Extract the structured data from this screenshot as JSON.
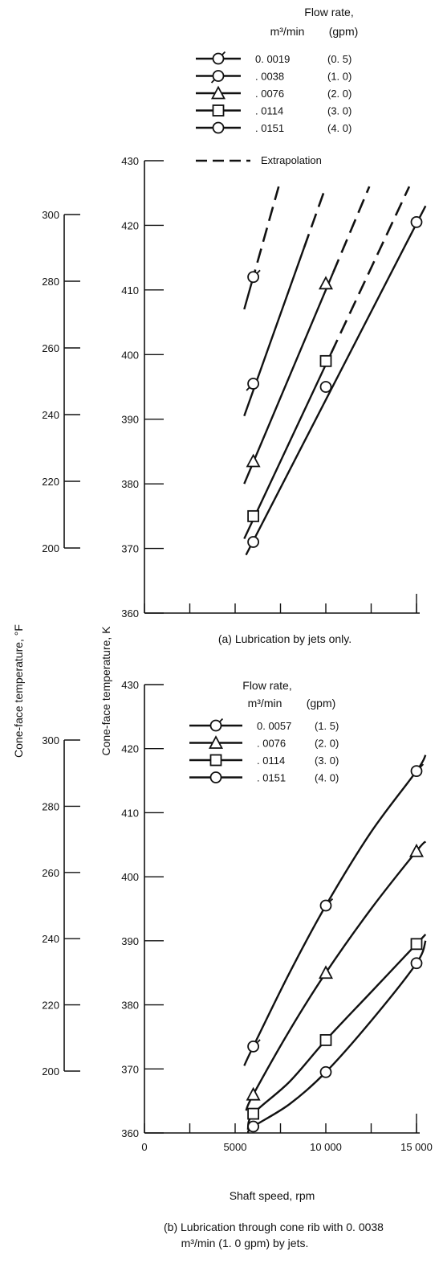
{
  "figure": {
    "left_axis_label": "Cone-face temperature, °F",
    "right_axis_label": "Cone-face temperature, K",
    "x_axis_label": "Shaft speed, rpm",
    "x_tick_labels": [
      "0",
      "5000",
      "10 000",
      "15 000"
    ]
  },
  "panel_a": {
    "caption": "(a) Lubrication by jets only.",
    "legend": {
      "title": "Flow rate,",
      "unit_si": "m³/min",
      "unit_us": "(gpm)",
      "extrapolation_label": "Extrapolation",
      "rows": [
        {
          "marker": "circle-flag-icon",
          "si": "0. 0019",
          "us": "(0. 5)"
        },
        {
          "marker": "circle-flag-down-icon",
          "si": ". 0038",
          "us": "(1. 0)"
        },
        {
          "marker": "triangle-icon",
          "si": ". 0076",
          "us": "(2. 0)"
        },
        {
          "marker": "square-icon",
          "si": ". 0114",
          "us": "(3. 0)"
        },
        {
          "marker": "circle-icon",
          "si": ". 0151",
          "us": "(4. 0)"
        }
      ]
    }
  },
  "panel_b": {
    "caption_line1": "(b) Lubrication through cone rib with 0. 0038",
    "caption_line2": "m³/min (1. 0 gpm) by jets.",
    "legend": {
      "title": "Flow rate,",
      "unit_si": "m³/min",
      "unit_us": "(gpm)",
      "rows": [
        {
          "marker": "circle-flag-icon",
          "si": "0. 0057",
          "us": "(1. 5)"
        },
        {
          "marker": "triangle-icon",
          "si": ". 0076",
          "us": "(2. 0)"
        },
        {
          "marker": "square-icon",
          "si": ". 0114",
          "us": "(3. 0)"
        },
        {
          "marker": "circle-icon",
          "si": ". 0151",
          "us": "(4. 0)"
        }
      ]
    }
  },
  "chart_data": [
    {
      "type": "line",
      "title": "(a) Lubrication by jets only.",
      "xlabel": "Shaft speed, rpm",
      "ylabel": "Cone-face temperature, K",
      "ylabel_secondary": "Cone-face temperature, °F",
      "xlim": [
        0,
        15000
      ],
      "ylim": [
        360,
        430
      ],
      "yticks": [
        360,
        370,
        380,
        390,
        400,
        410,
        420,
        430
      ],
      "yticks_secondary": [
        200,
        220,
        240,
        260,
        280,
        300
      ],
      "legend_position": "top",
      "series": [
        {
          "name": "0. 0019 (0. 5)",
          "marker": "circle-flag",
          "x": [
            6000
          ],
          "y": [
            412
          ],
          "fit": {
            "x0": 5500,
            "y0": 407,
            "x1": 7400,
            "y1": 426
          },
          "extrap_from_x": 5900
        },
        {
          "name": ". 0038 (1. 0)",
          "marker": "circle-flag-down",
          "x": [
            6000
          ],
          "y": [
            395.5
          ],
          "fit": {
            "x0": 5500,
            "y0": 390.5,
            "x1": 10000,
            "y1": 426
          },
          "extrap_from_x": 8800
        },
        {
          "name": ". 0076 (2. 0)",
          "marker": "triangle",
          "x": [
            6000,
            10000
          ],
          "y": [
            383.5,
            411
          ],
          "fit": {
            "x0": 5500,
            "y0": 380,
            "x1": 12400,
            "y1": 426
          },
          "extrap_from_x": 10400
        },
        {
          "name": ". 0114 (3. 0)",
          "marker": "square",
          "x": [
            6000,
            10000
          ],
          "y": [
            375,
            399
          ],
          "fit": {
            "x0": 5500,
            "y0": 371.5,
            "x1": 14600,
            "y1": 426
          },
          "extrap_from_x": 10300
        },
        {
          "name": ". 0151 (4. 0)",
          "marker": "circle",
          "x": [
            6000,
            10000,
            15000
          ],
          "y": [
            371,
            395,
            420.5
          ],
          "fit": {
            "x0": 5600,
            "y0": 369,
            "x1": 15500,
            "y1": 423
          },
          "extrap_from_x": null
        }
      ]
    },
    {
      "type": "line",
      "title": "(b) Lubrication through cone rib with 0. 0038 m³/min (1. 0 gpm) by jets.",
      "xlabel": "Shaft speed, rpm",
      "ylabel": "Cone-face temperature, K",
      "ylabel_secondary": "Cone-face temperature, °F",
      "xlim": [
        0,
        15000
      ],
      "ylim": [
        360,
        430
      ],
      "yticks": [
        360,
        370,
        380,
        390,
        400,
        410,
        420,
        430
      ],
      "yticks_secondary": [
        200,
        220,
        240,
        260,
        280,
        300
      ],
      "xtick_labels": [
        "0",
        "5000",
        "10 000",
        "15 000"
      ],
      "legend_position": "top-left",
      "series": [
        {
          "name": "0. 0057 (1. 5)",
          "marker": "circle-flag",
          "x": [
            6000,
            10000,
            15000
          ],
          "y": [
            373.5,
            395.5,
            416.5
          ],
          "curve": [
            [
              5500,
              370.5
            ],
            [
              6000,
              373.5
            ],
            [
              8000,
              385
            ],
            [
              10000,
              395.5
            ],
            [
              12500,
              407
            ],
            [
              15000,
              416.5
            ],
            [
              15500,
              419
            ]
          ]
        },
        {
          "name": ". 0076 (2. 0)",
          "marker": "triangle",
          "x": [
            6000,
            10000,
            15000
          ],
          "y": [
            366,
            385,
            404
          ],
          "curve": [
            [
              5600,
              363.5
            ],
            [
              6000,
              366
            ],
            [
              8000,
              376
            ],
            [
              10000,
              385
            ],
            [
              12500,
              395
            ],
            [
              15000,
              404
            ],
            [
              15500,
              405.5
            ]
          ]
        },
        {
          "name": ". 0114 (3. 0)",
          "marker": "square",
          "x": [
            6000,
            10000,
            15000
          ],
          "y": [
            363,
            374.5,
            389.5
          ],
          "curve": [
            [
              5700,
              360.5
            ],
            [
              6000,
              363
            ],
            [
              8000,
              368
            ],
            [
              10000,
              374.5
            ],
            [
              12500,
              382
            ],
            [
              15000,
              389.5
            ],
            [
              15500,
              391
            ]
          ]
        },
        {
          "name": ". 0151 (4. 0)",
          "marker": "circle",
          "x": [
            6000,
            10000,
            15000
          ],
          "y": [
            361,
            369.5,
            386.5
          ],
          "curve": [
            [
              5700,
              360
            ],
            [
              6000,
              361
            ],
            [
              8000,
              364.5
            ],
            [
              10000,
              369.5
            ],
            [
              12500,
              377.5
            ],
            [
              15000,
              386.5
            ],
            [
              15500,
              390
            ]
          ]
        }
      ]
    }
  ]
}
